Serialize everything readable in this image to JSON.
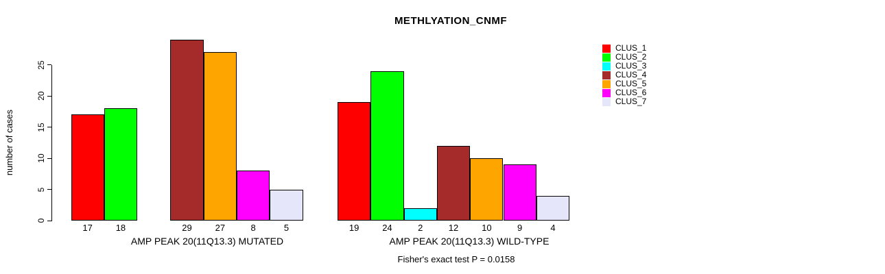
{
  "chart_data": {
    "type": "bar",
    "title": "METHLYATION_CNMF",
    "ylabel": "number of cases",
    "xlabel": "",
    "ylim": [
      0,
      29.5
    ],
    "yticks": [
      0,
      5,
      10,
      15,
      20,
      25
    ],
    "grid": false,
    "legend_position": "right",
    "categories": [
      "AMP PEAK 20(11Q13.3) MUTATED",
      "AMP PEAK 20(11Q13.3) WILD-TYPE"
    ],
    "series": [
      {
        "name": "CLUS_1",
        "color": "#FF0000",
        "values": [
          17,
          19
        ]
      },
      {
        "name": "CLUS_2",
        "color": "#00FF00",
        "values": [
          18,
          24
        ]
      },
      {
        "name": "CLUS_3",
        "color": "#00FFFF",
        "values": [
          0,
          2
        ]
      },
      {
        "name": "CLUS_4",
        "color": "#A52A2A",
        "values": [
          29,
          12
        ]
      },
      {
        "name": "CLUS_5",
        "color": "#FFA500",
        "values": [
          27,
          10
        ]
      },
      {
        "name": "CLUS_6",
        "color": "#FF00FF",
        "values": [
          8,
          9
        ]
      },
      {
        "name": "CLUS_7",
        "color": "#E6E6FA",
        "values": [
          5,
          4
        ]
      }
    ],
    "bar_value_labels_shown": true,
    "zero_value_bars_hidden": true,
    "annotation": "Fisher's exact test P = 0.0158"
  }
}
